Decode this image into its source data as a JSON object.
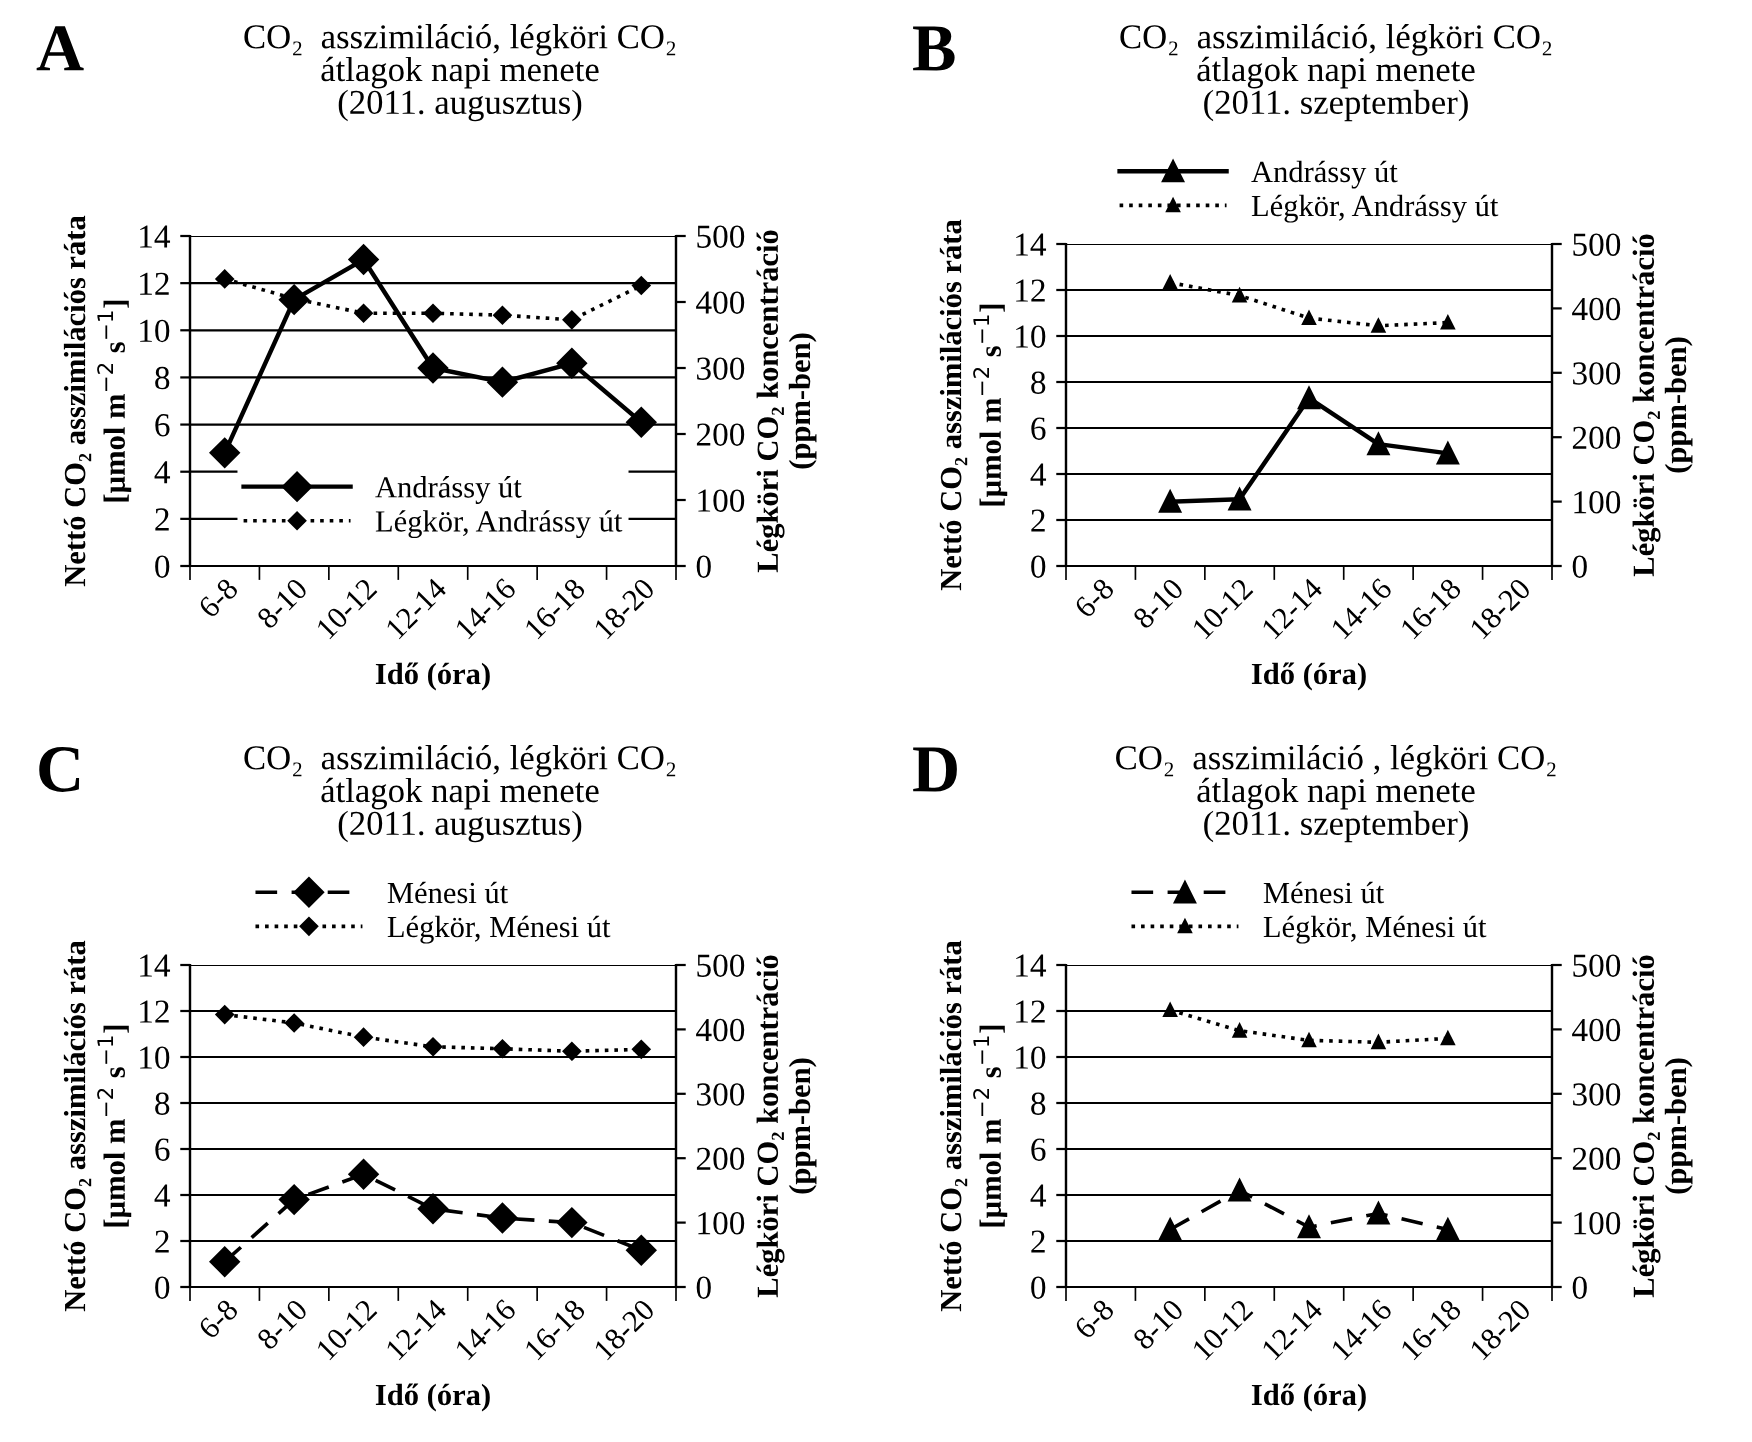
{
  "chart_data": [
    {
      "type": "line",
      "title": "CO₂  asszimiláció, légköri CO₂\nátlagok napi menete\n(2011. augusztus)",
      "annotations": [
        "A"
      ],
      "xlabel": "Idő (óra)",
      "ylabel": "Nettó CO₂ asszimilációs ráta\n[µmol m$^{−2}$ s$^{−1}$]",
      "y2label": "Légköri CO₂ koncentráció\n(ppm-ben)",
      "categories": [
        "6-8",
        "8-10",
        "10-12",
        "12-14",
        "14-16",
        "16-18",
        "18-20"
      ],
      "series": [
        {
          "name": "Andrássy út",
          "color": "#000000",
          "line_style": "solid",
          "values": [
            4.8,
            11.3,
            13.0,
            8.4,
            7.8,
            8.6,
            6.1
          ]
        },
        {
          "name": "Légkör, Andrássy út",
          "color": "#000000",
          "line_style": "dotted",
          "axis": "y2",
          "values": [
            435,
            405,
            383,
            383,
            380,
            373,
            425
          ]
        }
      ],
      "marker": "diamond",
      "ylim": [
        0,
        14
      ],
      "yticks": [
        0,
        2,
        4,
        6,
        8,
        10,
        12,
        14
      ],
      "y2lim": [
        0,
        500
      ],
      "y2ticks": [
        0,
        100,
        200,
        300,
        400,
        500
      ],
      "grid": "y",
      "legend": "bottom"
    },
    {
      "type": "line",
      "title": "CO₂  asszimiláció, légköri CO₂\nátlagok napi menete\n(2011. szeptember)",
      "annotations": [
        "B"
      ],
      "xlabel": "Idő (óra)",
      "ylabel": "Nettó CO₂ asszimilációs ráta\n[µmol m$^{−2}$ s$^{−1}$]",
      "y2label": "Légköri CO₂ koncentráció\n(ppm-ben)",
      "categories": [
        "6-8",
        "8-10",
        "10-12",
        "12-14",
        "14-16",
        "16-18",
        "18-20"
      ],
      "series": [
        {
          "name": "Andrássy út",
          "color": "#000000",
          "line_style": "solid",
          "values": [
            null,
            2.8,
            2.9,
            7.3,
            5.3,
            4.9,
            null
          ]
        },
        {
          "name": "Légkör, Andrássy út",
          "color": "#000000",
          "line_style": "dotted",
          "axis": "y2",
          "values": [
            null,
            440,
            420,
            385,
            373,
            378,
            null
          ]
        }
      ],
      "marker": "triangle",
      "ylim": [
        0,
        14
      ],
      "yticks": [
        0,
        2,
        4,
        6,
        8,
        10,
        12,
        14
      ],
      "y2lim": [
        0,
        500
      ],
      "y2ticks": [
        0,
        100,
        200,
        300,
        400,
        500
      ],
      "grid": "y",
      "legend": "top"
    },
    {
      "type": "line",
      "title": "CO₂  asszimiláció, légköri CO₂\nátlagok napi menete\n(2011. augusztus)",
      "annotations": [
        "C"
      ],
      "xlabel": "Idő (óra)",
      "ylabel": "Nettó CO₂ asszimilációs ráta\n[µmol m$^{−2}$ s$^{−1}$]",
      "y2label": "Légköri CO₂ koncentráció\n(ppm-ben)",
      "categories": [
        "6-8",
        "8-10",
        "10-12",
        "12-14",
        "14-16",
        "16-18",
        "18-20"
      ],
      "series": [
        {
          "name": "Ménesi út",
          "color": "#000000",
          "line_style": "dashed",
          "values": [
            1.1,
            3.8,
            4.9,
            3.4,
            3.0,
            2.8,
            1.6
          ]
        },
        {
          "name": "Légkör, Ménesi út",
          "color": "#000000",
          "line_style": "dotted",
          "axis": "y2",
          "values": [
            423,
            410,
            388,
            373,
            370,
            366,
            369
          ]
        }
      ],
      "marker": "diamond",
      "ylim": [
        0,
        14
      ],
      "yticks": [
        0,
        2,
        4,
        6,
        8,
        10,
        12,
        14
      ],
      "y2lim": [
        0,
        500
      ],
      "y2ticks": [
        0,
        100,
        200,
        300,
        400,
        500
      ],
      "grid": "y",
      "legend": "top"
    },
    {
      "type": "line",
      "title": "CO₂  asszimiláció , légköri CO₂\nátlagok napi menete\n(2011. szeptember)",
      "annotations": [
        "D"
      ],
      "xlabel": "Idő (óra)",
      "ylabel": "Nettó CO₂ asszimilációs ráta\n[µmol m$^{−2}$ s$^{−1}$]",
      "y2label": "Légköri CO₂ koncentráció\n(ppm-ben)",
      "categories": [
        "6-8",
        "8-10",
        "10-12",
        "12-14",
        "14-16",
        "16-18",
        "18-20"
      ],
      "series": [
        {
          "name": "Ménesi út",
          "color": "#000000",
          "line_style": "dashed",
          "values": [
            null,
            2.5,
            4.2,
            2.6,
            3.2,
            2.5,
            null
          ]
        },
        {
          "name": "Légkör, Ménesi út",
          "color": "#000000",
          "line_style": "dotted",
          "axis": "y2",
          "values": [
            null,
            430,
            398,
            383,
            380,
            386,
            null
          ]
        }
      ],
      "marker": "triangle",
      "ylim": [
        0,
        14
      ],
      "yticks": [
        0,
        2,
        4,
        6,
        8,
        10,
        12,
        14
      ],
      "y2lim": [
        0,
        500
      ],
      "y2ticks": [
        0,
        100,
        200,
        300,
        400,
        500
      ],
      "grid": "y",
      "legend": "top"
    }
  ]
}
